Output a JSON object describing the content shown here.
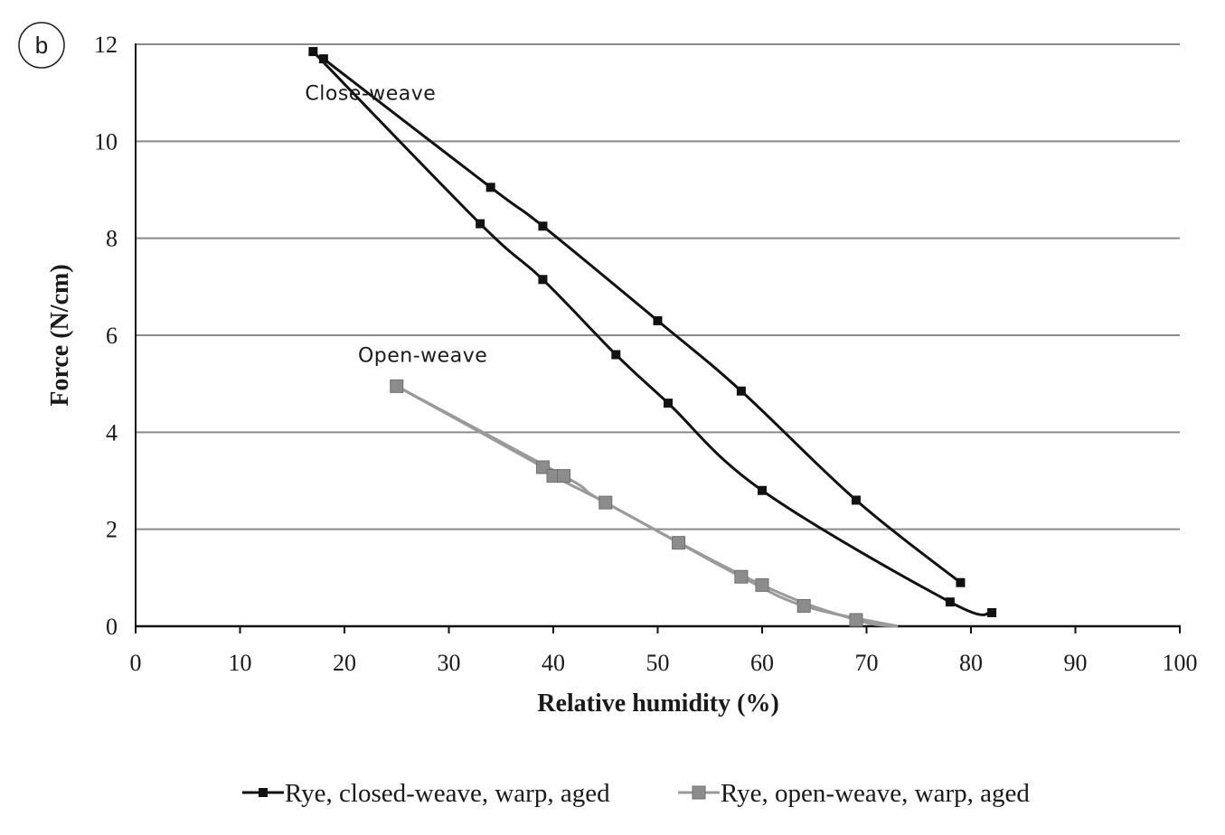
{
  "panel_label": "b",
  "chart_data": {
    "type": "line",
    "xlabel": "Relative humidity (%)",
    "ylabel": "Force (N/cm)",
    "xlim": [
      0,
      100
    ],
    "ylim": [
      0,
      12
    ],
    "xticks": [
      "0",
      "10",
      "20",
      "30",
      "40",
      "50",
      "60",
      "70",
      "80",
      "90",
      "100"
    ],
    "yticks": [
      "0",
      "2",
      "4",
      "6",
      "8",
      "10",
      "12"
    ],
    "grid": "horizontal",
    "legend_position": "bottom",
    "annotations": [
      {
        "text": "Close-weave",
        "x": 22.5,
        "y": 11.0
      },
      {
        "text": "Open-weave",
        "x": 27.5,
        "y": 5.6
      }
    ],
    "series": [
      {
        "name": "Rye, closed-weave, warp, aged",
        "color": "#111111",
        "marker_color": "#111111",
        "branches": [
          [
            [
              18,
              11.7
            ],
            [
              34,
              9.05
            ],
            [
              39,
              8.25
            ],
            [
              50,
              6.3
            ],
            [
              58,
              4.85
            ],
            [
              69,
              2.6
            ],
            [
              79,
              0.9
            ]
          ],
          [
            [
              17,
              11.85
            ],
            [
              33,
              8.3
            ],
            [
              39,
              7.15
            ],
            [
              46,
              5.6
            ],
            [
              51,
              4.6
            ],
            [
              60,
              2.8
            ],
            [
              78,
              0.5
            ],
            [
              82,
              0.28
            ]
          ]
        ]
      },
      {
        "name": "Rye, open-weave, warp, aged",
        "color": "#9a9a9a",
        "marker_color": "#8c8c8c",
        "branches": [
          [
            [
              25,
              4.95
            ],
            [
              39,
              3.28
            ],
            [
              40,
              3.1
            ],
            [
              45,
              2.55
            ],
            [
              52,
              1.72
            ],
            [
              58,
              1.02
            ],
            [
              64,
              0.42
            ],
            [
              73,
              0
            ]
          ],
          [
            [
              25,
              4.95
            ],
            [
              41,
              3.1
            ],
            [
              45,
              2.55
            ],
            [
              60,
              0.85
            ],
            [
              69,
              0.13
            ],
            [
              73,
              0
            ]
          ]
        ],
        "markers": [
          [
            25,
            4.95
          ],
          [
            39,
            3.28
          ],
          [
            40,
            3.1
          ],
          [
            41,
            3.1
          ],
          [
            45,
            2.55
          ],
          [
            52,
            1.72
          ],
          [
            58,
            1.02
          ],
          [
            60,
            0.85
          ],
          [
            64,
            0.42
          ],
          [
            69,
            0.13
          ]
        ]
      }
    ]
  }
}
